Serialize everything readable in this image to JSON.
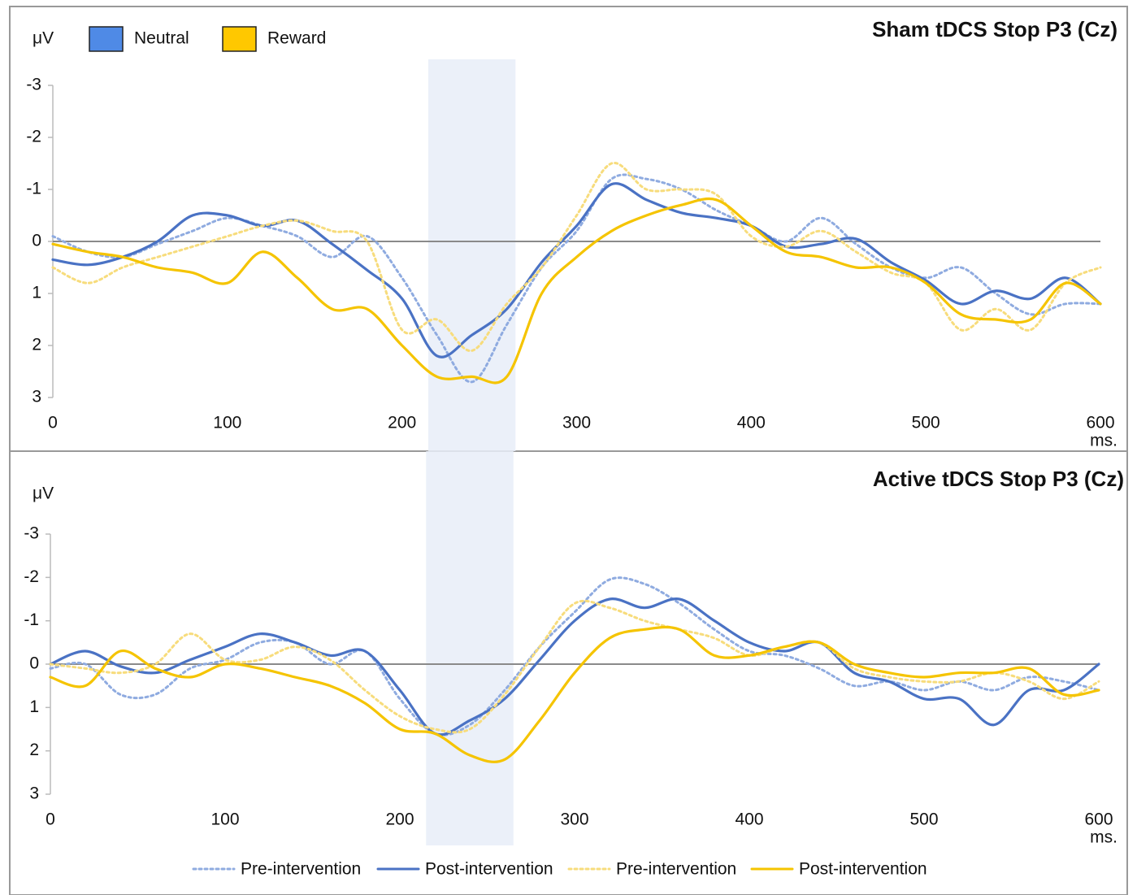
{
  "chart_data": [
    {
      "type": "line",
      "title": "Sham tDCS Stop P3 (Cz)",
      "ylabel": "μV",
      "xlabel": "ms.",
      "groups": [
        {
          "name": "Neutral",
          "color": "#4f8ae6"
        },
        {
          "name": "Reward",
          "color": "#ffc800"
        }
      ],
      "highlight": [
        215,
        265
      ],
      "x": [
        0,
        20,
        40,
        60,
        80,
        100,
        120,
        140,
        160,
        180,
        200,
        220,
        240,
        260,
        280,
        300,
        320,
        340,
        360,
        380,
        400,
        420,
        440,
        460,
        480,
        500,
        520,
        540,
        560,
        580,
        600
      ],
      "xlim": [
        0,
        600
      ],
      "xticks": [
        0,
        100,
        200,
        300,
        400,
        500,
        600
      ],
      "ylim": [
        3,
        -3
      ],
      "yticks": [
        -3,
        -2,
        -1,
        0,
        1,
        2,
        3
      ],
      "series": [
        {
          "name": "Pre-intervention",
          "color": "#8fabe0",
          "dash": true,
          "values": [
            -0.1,
            0.2,
            0.3,
            0.05,
            -0.2,
            -0.45,
            -0.3,
            -0.1,
            0.3,
            -0.1,
            0.7,
            1.8,
            2.7,
            1.6,
            0.5,
            -0.2,
            -1.2,
            -1.2,
            -1.0,
            -0.6,
            -0.3,
            0.0,
            -0.45,
            0.05,
            0.5,
            0.7,
            0.5,
            1.0,
            1.4,
            1.2,
            1.2
          ]
        },
        {
          "name": "Post-intervention",
          "color": "#4a72c4",
          "dash": false,
          "values": [
            0.35,
            0.45,
            0.3,
            0.0,
            -0.5,
            -0.5,
            -0.3,
            -0.4,
            0.05,
            0.55,
            1.1,
            2.2,
            1.8,
            1.3,
            0.4,
            -0.3,
            -1.1,
            -0.8,
            -0.55,
            -0.45,
            -0.3,
            0.1,
            0.05,
            -0.05,
            0.4,
            0.75,
            1.2,
            0.95,
            1.1,
            0.7,
            1.2
          ]
        },
        {
          "name": "Pre-intervention",
          "color": "#f7dc7c",
          "dash": true,
          "values": [
            0.5,
            0.8,
            0.5,
            0.3,
            0.1,
            -0.1,
            -0.3,
            -0.4,
            -0.2,
            0.0,
            1.7,
            1.5,
            2.1,
            1.2,
            0.5,
            -0.5,
            -1.5,
            -1.0,
            -1.0,
            -0.9,
            -0.1,
            0.1,
            -0.2,
            0.2,
            0.6,
            0.8,
            1.7,
            1.3,
            1.7,
            0.8,
            0.5
          ]
        },
        {
          "name": "Post-intervention",
          "color": "#f5c400",
          "dash": false,
          "values": [
            0.05,
            0.2,
            0.3,
            0.5,
            0.6,
            0.8,
            0.2,
            0.7,
            1.3,
            1.3,
            2.0,
            2.6,
            2.6,
            2.6,
            1.0,
            0.3,
            -0.2,
            -0.5,
            -0.7,
            -0.8,
            -0.3,
            0.2,
            0.3,
            0.5,
            0.5,
            0.8,
            1.4,
            1.5,
            1.5,
            0.8,
            1.2
          ]
        }
      ]
    },
    {
      "type": "line",
      "title": "Active tDCS Stop P3 (Cz)",
      "ylabel": "μV",
      "xlabel": "ms.",
      "highlight": [
        215,
        265
      ],
      "x": [
        0,
        20,
        40,
        60,
        80,
        100,
        120,
        140,
        160,
        180,
        200,
        220,
        240,
        260,
        280,
        300,
        320,
        340,
        360,
        380,
        400,
        420,
        440,
        460,
        480,
        500,
        520,
        540,
        560,
        580,
        600
      ],
      "xlim": [
        0,
        600
      ],
      "xticks": [
        0,
        100,
        200,
        300,
        400,
        500,
        600
      ],
      "ylim": [
        3,
        -3
      ],
      "yticks": [
        -3,
        -2,
        -1,
        0,
        1,
        2,
        3
      ],
      "series": [
        {
          "color": "#8fabe0",
          "dash": true,
          "values": [
            0.1,
            0.0,
            0.7,
            0.7,
            0.1,
            -0.1,
            -0.5,
            -0.5,
            0.0,
            -0.3,
            0.8,
            1.6,
            1.4,
            0.6,
            -0.4,
            -1.2,
            -1.95,
            -1.85,
            -1.4,
            -0.8,
            -0.3,
            -0.2,
            0.1,
            0.5,
            0.4,
            0.6,
            0.4,
            0.6,
            0.3,
            0.4,
            0.6
          ]
        },
        {
          "color": "#4a72c4",
          "dash": false,
          "values": [
            0.0,
            -0.3,
            0.05,
            0.2,
            -0.1,
            -0.4,
            -0.7,
            -0.5,
            -0.2,
            -0.3,
            0.6,
            1.6,
            1.3,
            0.8,
            -0.1,
            -1.0,
            -1.5,
            -1.3,
            -1.5,
            -1.0,
            -0.5,
            -0.3,
            -0.5,
            0.2,
            0.4,
            0.8,
            0.8,
            1.4,
            0.6,
            0.6,
            0.0
          ]
        },
        {
          "color": "#f7dc7c",
          "dash": true,
          "values": [
            0.0,
            0.1,
            0.2,
            0.0,
            -0.7,
            -0.1,
            -0.1,
            -0.4,
            -0.1,
            0.6,
            1.2,
            1.5,
            1.5,
            0.7,
            -0.4,
            -1.4,
            -1.3,
            -1.0,
            -0.8,
            -0.6,
            -0.2,
            -0.4,
            -0.5,
            0.1,
            0.3,
            0.4,
            0.4,
            0.2,
            0.4,
            0.8,
            0.4
          ]
        },
        {
          "color": "#f5c400",
          "dash": false,
          "values": [
            0.3,
            0.5,
            -0.3,
            0.1,
            0.3,
            0.0,
            0.1,
            0.3,
            0.5,
            0.9,
            1.5,
            1.6,
            2.1,
            2.2,
            1.3,
            0.2,
            -0.6,
            -0.8,
            -0.8,
            -0.2,
            -0.2,
            -0.4,
            -0.5,
            0.0,
            0.2,
            0.3,
            0.2,
            0.2,
            0.1,
            0.7,
            0.6
          ]
        }
      ]
    }
  ]
}
